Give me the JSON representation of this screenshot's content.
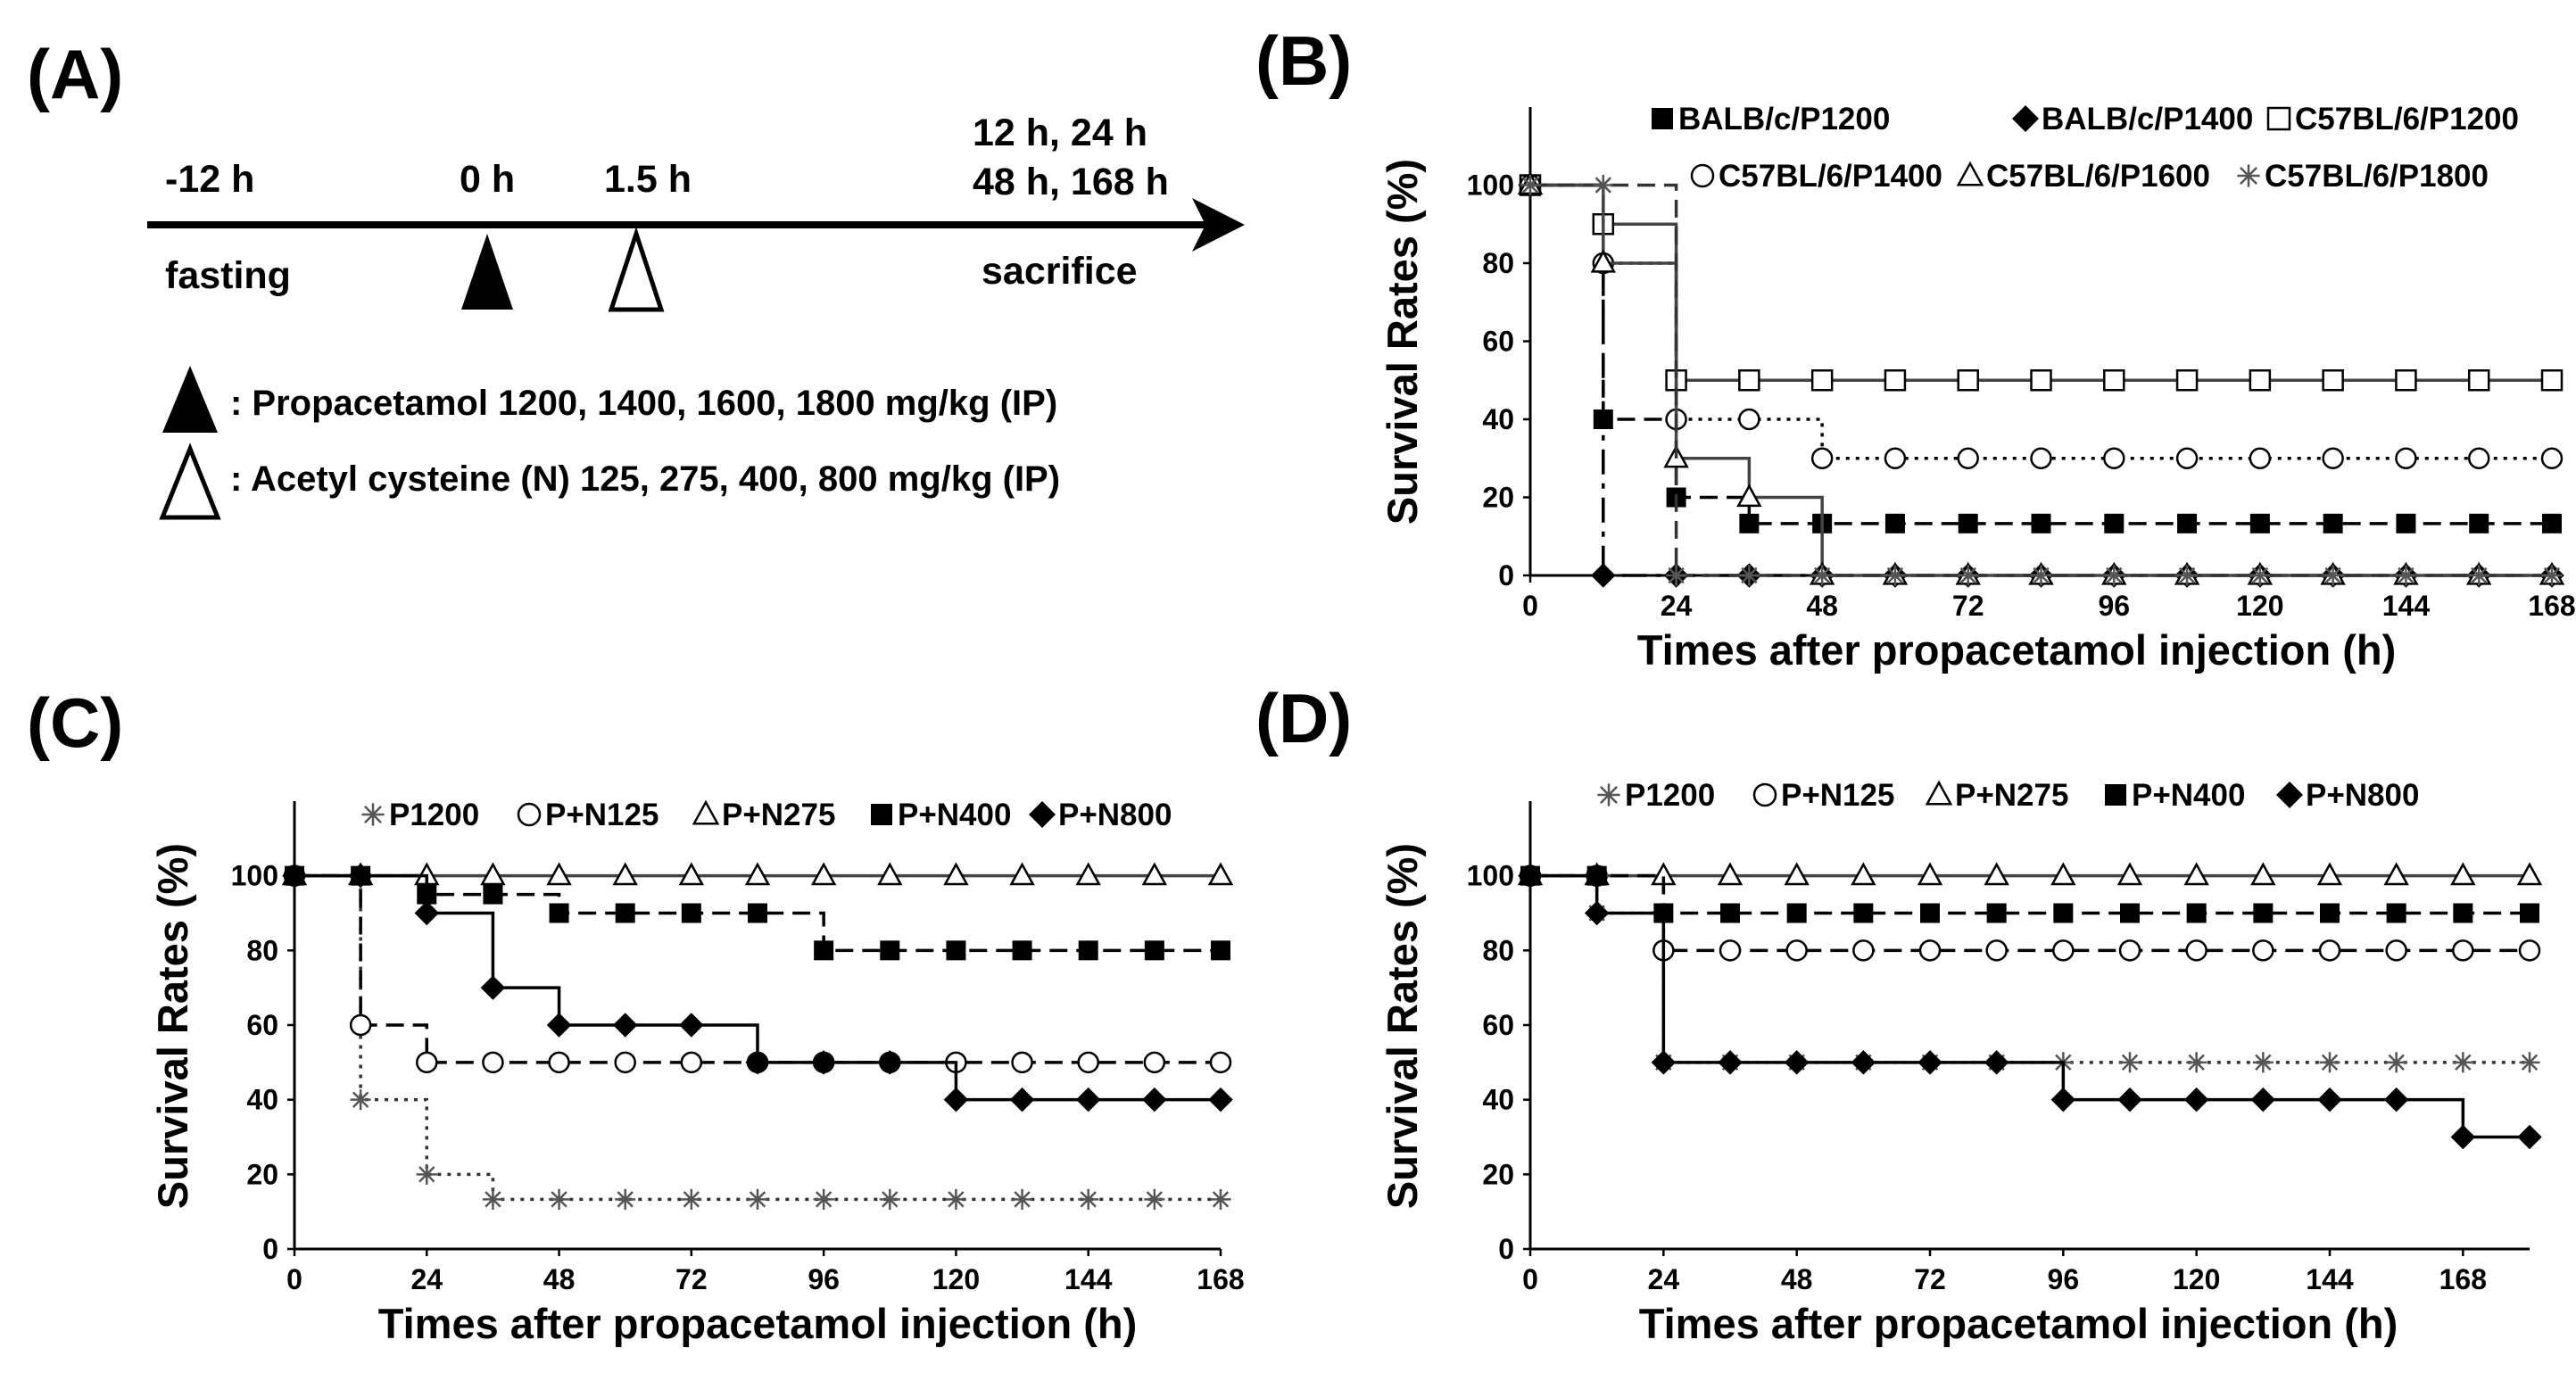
{
  "panel_a": {
    "label": "(A)",
    "times": [
      {
        "key": "fast",
        "text": "-12 h"
      },
      {
        "key": "zero",
        "text": "0 h"
      },
      {
        "key": "onefive",
        "text": "1.5 h"
      },
      {
        "key": "end1",
        "text": "12 h, 24 h"
      },
      {
        "key": "end2",
        "text": "48 h, 168 h"
      }
    ],
    "fasting": "fasting",
    "sacrifice": "sacrifice",
    "legend": [
      {
        "marker": "filled-triangle-icon",
        "text": ": Propacetamol 1200, 1400, 1600, 1800 mg/kg (IP)"
      },
      {
        "marker": "open-triangle-icon",
        "text": ": Acetyl cysteine (N) 125, 275, 400, 800 mg/kg (IP)"
      }
    ]
  },
  "chart_data": [
    {
      "panel": "(B)",
      "type": "line",
      "subtype": "step",
      "xlabel": "Times after propacetamol injection (h)",
      "ylabel": "Survival Rates (%)",
      "xlim": [
        0,
        168
      ],
      "ylim": [
        0,
        120
      ],
      "xticks": [
        0,
        24,
        48,
        72,
        96,
        120,
        144,
        168
      ],
      "yticks": [
        0,
        20,
        40,
        60,
        80,
        100
      ],
      "legend_position": "top",
      "series": [
        {
          "name": "BALB/c/P1200",
          "marker": "filled-square",
          "dash": "dashed",
          "x": [
            0,
            12,
            24,
            36,
            48,
            60,
            72,
            84,
            96,
            108,
            120,
            132,
            144,
            156,
            168
          ],
          "y": [
            100,
            40,
            20,
            13.3,
            13.3,
            13.3,
            13.3,
            13.3,
            13.3,
            13.3,
            13.3,
            13.3,
            13.3,
            13.3,
            13.3
          ]
        },
        {
          "name": "BALB/c/P1400",
          "marker": "filled-diamond",
          "dash": "dashdot",
          "x": [
            0,
            12,
            24,
            36,
            48,
            60,
            72,
            84,
            96,
            108,
            120,
            132,
            144,
            156,
            168
          ],
          "y": [
            100,
            0,
            0,
            0,
            0,
            0,
            0,
            0,
            0,
            0,
            0,
            0,
            0,
            0,
            0
          ]
        },
        {
          "name": "C57BL/6/P1200",
          "marker": "open-square",
          "dash": "solid",
          "x": [
            0,
            12,
            24,
            36,
            48,
            60,
            72,
            84,
            96,
            108,
            120,
            132,
            144,
            156,
            168
          ],
          "y": [
            100,
            90,
            50,
            50,
            50,
            50,
            50,
            50,
            50,
            50,
            50,
            50,
            50,
            50,
            50
          ]
        },
        {
          "name": "C57BL/6/P1400",
          "marker": "open-circle",
          "dash": "dotted",
          "x": [
            0,
            12,
            24,
            36,
            48,
            60,
            72,
            84,
            96,
            108,
            120,
            132,
            144,
            156,
            168
          ],
          "y": [
            100,
            80,
            40,
            40,
            30,
            30,
            30,
            30,
            30,
            30,
            30,
            30,
            30,
            30,
            30
          ]
        },
        {
          "name": "C57BL/6/P1600",
          "marker": "open-triangle",
          "dash": "solid",
          "x": [
            0,
            12,
            24,
            36,
            48,
            60,
            72,
            84,
            96,
            108,
            120,
            132,
            144,
            156,
            168
          ],
          "y": [
            100,
            80,
            30,
            20,
            0,
            0,
            0,
            0,
            0,
            0,
            0,
            0,
            0,
            0,
            0
          ]
        },
        {
          "name": "C57BL/6/P1800",
          "marker": "asterisk",
          "dash": "dashed",
          "x": [
            0,
            12,
            24,
            36,
            48,
            60,
            72,
            84,
            96,
            108,
            120,
            132,
            144,
            156,
            168
          ],
          "y": [
            100,
            100,
            0,
            0,
            0,
            0,
            0,
            0,
            0,
            0,
            0,
            0,
            0,
            0,
            0
          ]
        }
      ]
    },
    {
      "panel": "(C)",
      "type": "line",
      "subtype": "step",
      "xlabel": "Times after propacetamol injection (h)",
      "ylabel": "Survival Rates (%)",
      "xlim": [
        0,
        168
      ],
      "ylim": [
        0,
        120
      ],
      "xticks": [
        0,
        24,
        48,
        72,
        96,
        120,
        144,
        168
      ],
      "yticks": [
        0,
        20,
        40,
        60,
        80,
        100
      ],
      "legend_position": "top",
      "series": [
        {
          "name": "P1200",
          "marker": "asterisk",
          "dash": "dotted",
          "x": [
            0,
            12,
            24,
            36,
            48,
            60,
            72,
            84,
            96,
            108,
            120,
            132,
            144,
            156,
            168
          ],
          "y": [
            100,
            40,
            20,
            13.3,
            13.3,
            13.3,
            13.3,
            13.3,
            13.3,
            13.3,
            13.3,
            13.3,
            13.3,
            13.3,
            13.3
          ]
        },
        {
          "name": "P+N125",
          "marker": "open-circle",
          "dash": "dashed",
          "x": [
            0,
            12,
            24,
            36,
            48,
            60,
            72,
            84,
            96,
            108,
            120,
            132,
            144,
            156,
            168
          ],
          "y": [
            100,
            60,
            50,
            50,
            50,
            50,
            50,
            50,
            50,
            50,
            50,
            50,
            50,
            50,
            50
          ]
        },
        {
          "name": "P+N275",
          "marker": "open-triangle",
          "dash": "solid",
          "x": [
            0,
            12,
            24,
            36,
            48,
            60,
            72,
            84,
            96,
            108,
            120,
            132,
            144,
            156,
            168
          ],
          "y": [
            100,
            100,
            100,
            100,
            100,
            100,
            100,
            100,
            100,
            100,
            100,
            100,
            100,
            100,
            100
          ]
        },
        {
          "name": "P+N400",
          "marker": "filled-square",
          "dash": "dashed",
          "x": [
            0,
            12,
            24,
            36,
            48,
            60,
            72,
            84,
            96,
            108,
            120,
            132,
            144,
            156,
            168
          ],
          "y": [
            100,
            100,
            95,
            95,
            90,
            90,
            90,
            90,
            80,
            80,
            80,
            80,
            80,
            80,
            80
          ]
        },
        {
          "name": "P+N800",
          "marker": "filled-diamond",
          "dash": "solid",
          "x": [
            0,
            12,
            24,
            36,
            48,
            60,
            72,
            84,
            96,
            108,
            120,
            132,
            144,
            156,
            168
          ],
          "y": [
            100,
            100,
            90,
            70,
            60,
            60,
            60,
            50,
            50,
            50,
            40,
            40,
            40,
            40,
            40
          ]
        }
      ]
    },
    {
      "panel": "(D)",
      "type": "line",
      "subtype": "step",
      "xlabel": "Times after propacetamol injection (h)",
      "ylabel": "Survival Rates (%)",
      "xlim": [
        0,
        180
      ],
      "ylim": [
        0,
        120
      ],
      "xticks": [
        0,
        24,
        48,
        72,
        96,
        120,
        144,
        168
      ],
      "yticks": [
        0,
        20,
        40,
        60,
        80,
        100
      ],
      "legend_position": "top",
      "series": [
        {
          "name": "P1200",
          "marker": "asterisk",
          "dash": "dotted",
          "x": [
            0,
            12,
            24,
            36,
            48,
            60,
            72,
            84,
            96,
            108,
            120,
            132,
            144,
            156,
            168,
            180
          ],
          "y": [
            100,
            90,
            50,
            50,
            50,
            50,
            50,
            50,
            50,
            50,
            50,
            50,
            50,
            50,
            50,
            50
          ]
        },
        {
          "name": "P+N125",
          "marker": "open-circle",
          "dash": "dashed",
          "x": [
            0,
            12,
            24,
            36,
            48,
            60,
            72,
            84,
            96,
            108,
            120,
            132,
            144,
            156,
            168,
            180
          ],
          "y": [
            100,
            100,
            80,
            80,
            80,
            80,
            80,
            80,
            80,
            80,
            80,
            80,
            80,
            80,
            80,
            80
          ]
        },
        {
          "name": "P+N275",
          "marker": "open-triangle",
          "dash": "solid",
          "x": [
            0,
            12,
            24,
            36,
            48,
            60,
            72,
            84,
            96,
            108,
            120,
            132,
            144,
            156,
            168,
            180
          ],
          "y": [
            100,
            100,
            100,
            100,
            100,
            100,
            100,
            100,
            100,
            100,
            100,
            100,
            100,
            100,
            100,
            100
          ]
        },
        {
          "name": "P+N400",
          "marker": "filled-square",
          "dash": "dashed",
          "x": [
            0,
            12,
            24,
            36,
            48,
            60,
            72,
            84,
            96,
            108,
            120,
            132,
            144,
            156,
            168,
            180
          ],
          "y": [
            100,
            100,
            90,
            90,
            90,
            90,
            90,
            90,
            90,
            90,
            90,
            90,
            90,
            90,
            90,
            90
          ]
        },
        {
          "name": "P+N800",
          "marker": "filled-diamond",
          "dash": "solid",
          "x": [
            0,
            12,
            24,
            36,
            48,
            60,
            72,
            84,
            96,
            108,
            120,
            132,
            144,
            156,
            168,
            180
          ],
          "y": [
            100,
            90,
            50,
            50,
            50,
            50,
            50,
            50,
            40,
            40,
            40,
            40,
            40,
            40,
            30,
            30
          ]
        }
      ]
    }
  ]
}
